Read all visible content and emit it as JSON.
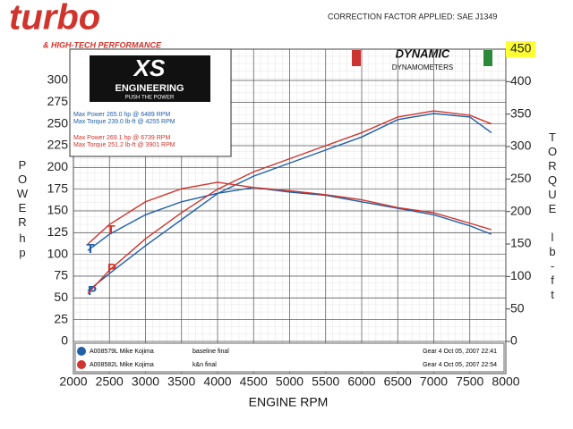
{
  "chart_data": {
    "type": "line",
    "logo": "turbo",
    "logo_tagline": "& HIGH-TECH PERFORMANCE",
    "title": "CORRECTION FACTOR APPLIED: SAE J1349",
    "brand": "DYNAMIC",
    "brand_sub": "DYNAMOMETERS",
    "shop": "XS",
    "shop_sub": "ENGINEERING",
    "shop_motto": "PUSH THE POWER",
    "notes": [
      {
        "text": "Max Power 265.0 hp @ 6489 RPM",
        "color": "#1f5fa8"
      },
      {
        "text": "Max Torque 239.0 lb-ft @ 4255 RPM",
        "color": "#1f5fa8"
      },
      {
        "text": "Max Power 269.1 hp @ 6739 RPM",
        "color": "#d0342c"
      },
      {
        "text": "Max Torque 251.2 lb-ft @ 3901 RPM",
        "color": "#d0342c"
      }
    ],
    "xlabel": "ENGINE RPM",
    "ylabel": [
      "POWER",
      "hp"
    ],
    "y2label": [
      "TORQUE",
      "lb-ft"
    ],
    "x": [
      2200,
      2500,
      3000,
      3500,
      4000,
      4500,
      5000,
      5500,
      6000,
      6500,
      7000,
      7500,
      7800
    ],
    "xlim": [
      2000,
      8000
    ],
    "xticks": [
      2000,
      2500,
      3000,
      3500,
      4000,
      4500,
      5000,
      5500,
      6000,
      6500,
      7000,
      7500,
      8000
    ],
    "ylim": [
      0,
      336
    ],
    "yticks": [
      0,
      25,
      50,
      75,
      100,
      125,
      150,
      175,
      200,
      225,
      250,
      275,
      300
    ],
    "y2lim": [
      0,
      450
    ],
    "y2ticks": [
      0,
      50,
      100,
      150,
      200,
      250,
      300,
      350,
      400,
      450
    ],
    "grid": true,
    "series": [
      {
        "name": "T",
        "color": "#1f5fa8",
        "axis": "y2",
        "values": [
          140,
          165,
          195,
          215,
          228,
          237,
          230,
          225,
          215,
          205,
          195,
          178,
          165
        ]
      },
      {
        "name": "P",
        "color": "#1f5fa8",
        "values": [
          58,
          78,
          110,
          140,
          170,
          190,
          205,
          220,
          235,
          255,
          262,
          258,
          240
        ]
      },
      {
        "name": "T",
        "color": "#d0342c",
        "axis": "y2",
        "values": [
          150,
          180,
          215,
          235,
          245,
          237,
          232,
          226,
          218,
          206,
          198,
          182,
          172
        ]
      },
      {
        "name": "P",
        "color": "#d0342c",
        "values": [
          55,
          82,
          118,
          148,
          175,
          195,
          210,
          225,
          240,
          258,
          265,
          260,
          250
        ]
      }
    ],
    "legend": [
      {
        "run": "A008579L Mike Kojima",
        "label": "baseline final",
        "info": "Gear 4 Oct 05, 2007 22:41",
        "color": "#1f5fa8"
      },
      {
        "run": "A008582L Mike Kojima",
        "label": "k&n final",
        "info": "Gear 4 Oct 05, 2007 22:54",
        "color": "#d0342c"
      }
    ]
  }
}
